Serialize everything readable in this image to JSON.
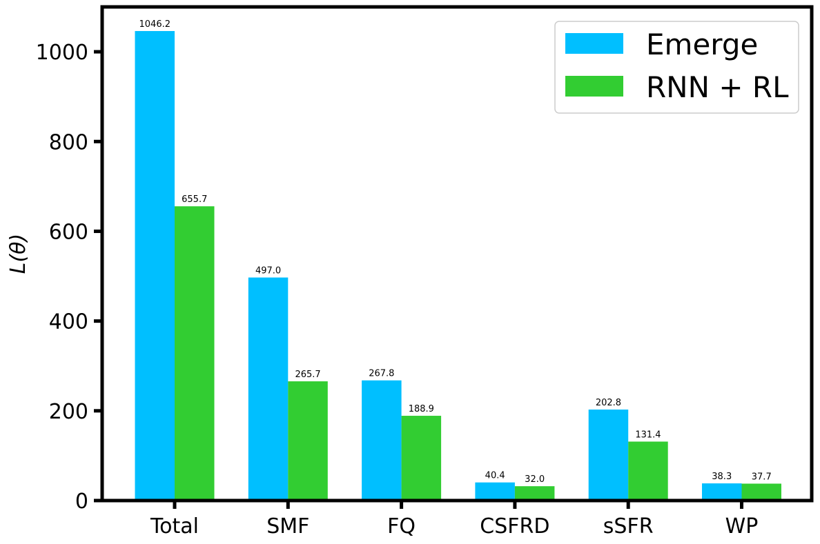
{
  "chart_data": {
    "type": "bar",
    "categories": [
      "Total",
      "SMF",
      "FQ",
      "CSFRD",
      "sSFR",
      "WP"
    ],
    "series": [
      {
        "name": "Emerge",
        "values": [
          1046.2,
          497.0,
          267.8,
          40.4,
          202.8,
          38.3
        ],
        "labels": [
          "1046.2",
          "497.0",
          "267.8",
          "40.4",
          "202.8",
          "38.3"
        ],
        "color": "#00bfff"
      },
      {
        "name": "RNN + RL",
        "values": [
          655.7,
          265.7,
          188.9,
          32.0,
          131.4,
          37.7
        ],
        "labels": [
          "655.7",
          "265.7",
          "188.9",
          "32.0",
          "131.4",
          "37.7"
        ],
        "color": "#32cd32"
      }
    ],
    "title": "",
    "xlabel": "",
    "ylabel": "L(θ)",
    "ylim": [
      0,
      1100
    ],
    "yticks": [
      0,
      200,
      400,
      600,
      800,
      1000
    ],
    "grid": false,
    "legend_position": "top-right"
  }
}
